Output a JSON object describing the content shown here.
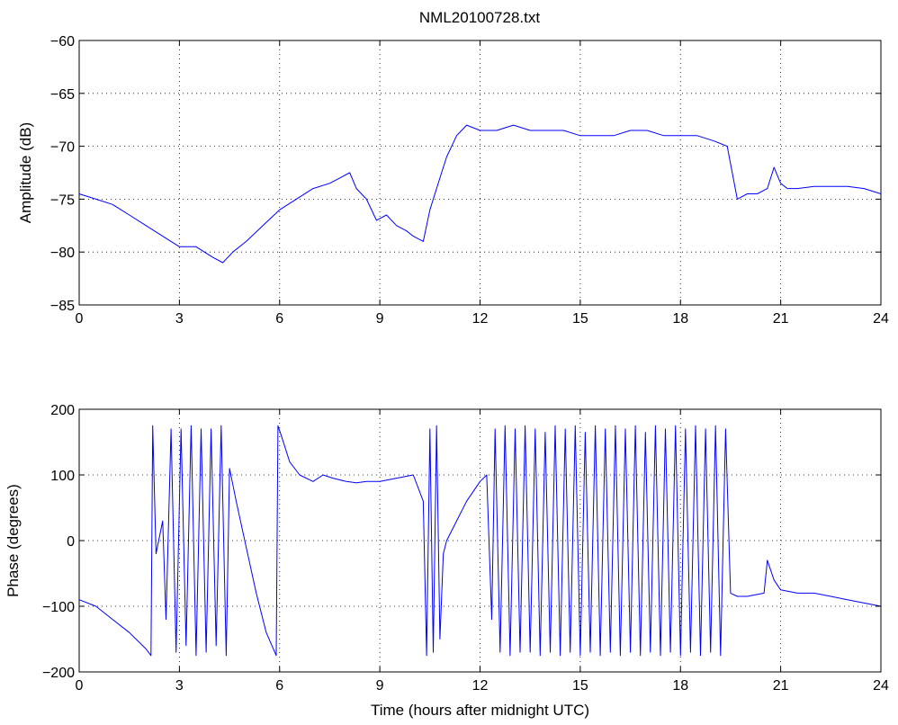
{
  "figure": {
    "title": "NML20100728.txt",
    "background": "#ffffff",
    "line_color": "#0000ff"
  },
  "chart_data": [
    {
      "type": "line",
      "title": "NML20100728.txt",
      "xlabel": "",
      "ylabel": "Amplitude (dB)",
      "xlim": [
        0,
        24
      ],
      "ylim": [
        -85,
        -60
      ],
      "xticks": [
        0,
        3,
        6,
        9,
        12,
        15,
        18,
        21,
        24
      ],
      "yticks": [
        -85,
        -80,
        -75,
        -70,
        -65,
        -60
      ],
      "xtick_labels": [
        "0",
        "3",
        "6",
        "9",
        "12",
        "15",
        "18",
        "21",
        "24"
      ],
      "ytick_labels": [
        "−85",
        "−80",
        "−75",
        "−70",
        "−65",
        "−60"
      ],
      "grid": true,
      "series": [
        {
          "color": "#0000ff",
          "x": [
            0,
            0.5,
            1,
            1.5,
            2,
            2.5,
            3,
            3.5,
            4,
            4.3,
            4.6,
            5,
            5.5,
            6,
            6.5,
            7,
            7.5,
            7.8,
            8.1,
            8.3,
            8.6,
            8.9,
            9.2,
            9.5,
            9.8,
            10,
            10.3,
            10.5,
            10.8,
            11,
            11.3,
            11.6,
            12,
            12.5,
            13,
            13.5,
            14,
            14.5,
            15,
            15.5,
            16,
            16.5,
            17,
            17.5,
            18,
            18.5,
            19,
            19.4,
            19.7,
            20,
            20.3,
            20.6,
            20.8,
            21,
            21.2,
            21.5,
            22,
            22.5,
            23,
            23.5,
            24
          ],
          "y": [
            -74.5,
            -75,
            -75.5,
            -76.5,
            -77.5,
            -78.5,
            -79.5,
            -79.5,
            -80.5,
            -81,
            -80,
            -79,
            -77.5,
            -76,
            -75,
            -74,
            -73.5,
            -73,
            -72.5,
            -74,
            -75,
            -77,
            -76.5,
            -77.5,
            -78,
            -78.5,
            -79,
            -76,
            -73,
            -71,
            -69,
            -68,
            -68.5,
            -68.5,
            -68,
            -68.5,
            -68.5,
            -68.5,
            -69,
            -69,
            -69,
            -68.5,
            -68.5,
            -69,
            -69,
            -69,
            -69.5,
            -70,
            -75,
            -74.5,
            -74.5,
            -74,
            -72,
            -73.5,
            -74,
            -74,
            -73.8,
            -73.8,
            -73.8,
            -74,
            -74.5
          ]
        }
      ]
    },
    {
      "type": "line",
      "title": "",
      "xlabel": "Time (hours after midnight UTC)",
      "ylabel": "Phase (degrees)",
      "xlim": [
        0,
        24
      ],
      "ylim": [
        -200,
        200
      ],
      "xticks": [
        0,
        3,
        6,
        9,
        12,
        15,
        18,
        21,
        24
      ],
      "yticks": [
        -200,
        -100,
        0,
        100,
        200
      ],
      "xtick_labels": [
        "0",
        "3",
        "6",
        "9",
        "12",
        "15",
        "18",
        "21",
        "24"
      ],
      "ytick_labels": [
        "−200",
        "−100",
        "0",
        "100",
        "200"
      ],
      "grid": true,
      "series": [
        {
          "color": "#0000ff",
          "x": [
            0,
            0.5,
            1,
            1.5,
            2,
            2.15,
            2.2,
            2.3,
            2.5,
            2.6,
            2.75,
            2.9,
            3.05,
            3.2,
            3.35,
            3.5,
            3.65,
            3.8,
            3.95,
            4.1,
            4.25,
            4.4,
            4.5,
            4.7,
            5,
            5.3,
            5.6,
            5.9,
            5.95,
            6.05,
            6.3,
            6.6,
            7,
            7.3,
            7.6,
            8,
            8.3,
            8.6,
            9,
            9.5,
            10,
            10.3,
            10.4,
            10.5,
            10.6,
            10.7,
            10.8,
            10.9,
            11,
            11.3,
            11.6,
            12,
            12.2,
            12.35,
            12.45,
            12.6,
            12.75,
            12.9,
            13.05,
            13.2,
            13.35,
            13.5,
            13.65,
            13.8,
            13.95,
            14.1,
            14.25,
            14.4,
            14.55,
            14.7,
            14.85,
            15,
            15.15,
            15.3,
            15.45,
            15.6,
            15.75,
            15.9,
            16.05,
            16.2,
            16.35,
            16.5,
            16.65,
            16.8,
            16.95,
            17.1,
            17.25,
            17.4,
            17.55,
            17.7,
            17.85,
            18,
            18.15,
            18.3,
            18.45,
            18.6,
            18.75,
            18.9,
            19.05,
            19.2,
            19.35,
            19.5,
            19.7,
            20,
            20.5,
            20.6,
            20.8,
            21,
            21.5,
            22,
            22.5,
            23,
            23.5,
            24
          ],
          "y": [
            -90,
            -100,
            -120,
            -140,
            -165,
            -175,
            175,
            -20,
            30,
            -120,
            170,
            -170,
            170,
            -160,
            175,
            -175,
            170,
            -170,
            170,
            -160,
            175,
            -175,
            110,
            60,
            -10,
            -80,
            -140,
            -175,
            175,
            160,
            120,
            100,
            90,
            100,
            95,
            90,
            88,
            90,
            90,
            95,
            100,
            60,
            -175,
            170,
            -170,
            175,
            -150,
            -20,
            0,
            30,
            60,
            90,
            100,
            -120,
            170,
            -170,
            175,
            -175,
            170,
            -170,
            175,
            -170,
            170,
            -175,
            165,
            -170,
            175,
            -175,
            170,
            -170,
            175,
            -175,
            165,
            -170,
            175,
            -175,
            170,
            -170,
            175,
            -175,
            170,
            -170,
            175,
            -175,
            165,
            -170,
            175,
            -175,
            170,
            -170,
            175,
            -175,
            170,
            -170,
            175,
            -175,
            170,
            -170,
            175,
            -175,
            170,
            -80,
            -85,
            -85,
            -80,
            -30,
            -60,
            -75,
            -80,
            -80,
            -85,
            -90,
            -95,
            -100
          ]
        }
      ]
    }
  ]
}
